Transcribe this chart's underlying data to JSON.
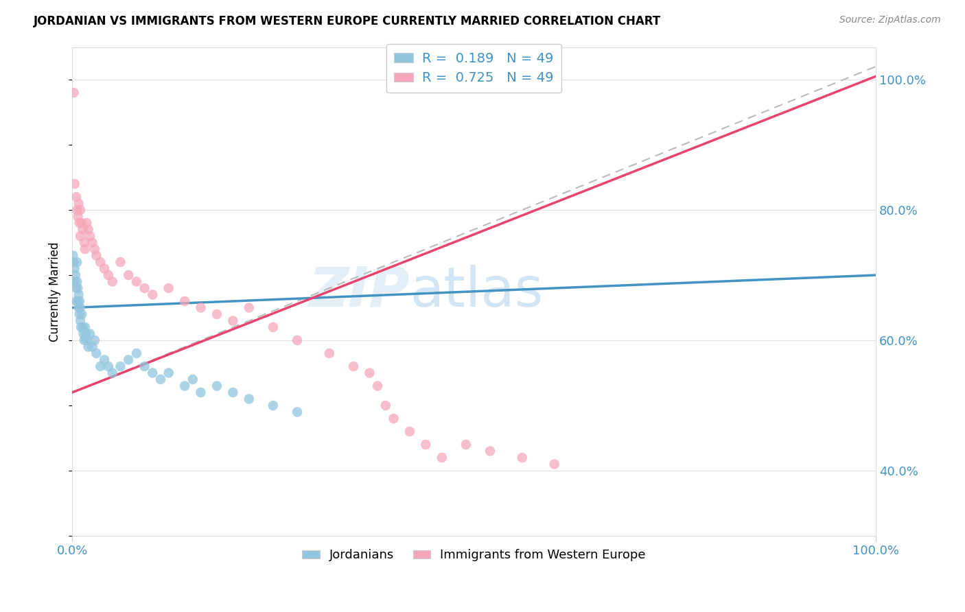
{
  "title": "JORDANIAN VS IMMIGRANTS FROM WESTERN EUROPE CURRENTLY MARRIED CORRELATION CHART",
  "source": "Source: ZipAtlas.com",
  "ylabel": "Currently Married",
  "legend1_R": "0.189",
  "legend1_N": "49",
  "legend2_R": "0.725",
  "legend2_N": "49",
  "legend_label1": "Jordanians",
  "legend_label2": "Immigrants from Western Europe",
  "blue_color": "#92c5de",
  "pink_color": "#f4a7b9",
  "blue_line_color": "#4393c3",
  "pink_line_color": "#e8436e",
  "dashed_line_color": "#bbbbbb",
  "blue_scatter_x": [
    0.001,
    0.002,
    0.003,
    0.003,
    0.004,
    0.005,
    0.005,
    0.006,
    0.006,
    0.007,
    0.007,
    0.008,
    0.008,
    0.009,
    0.009,
    0.01,
    0.01,
    0.011,
    0.012,
    0.013,
    0.014,
    0.015,
    0.016,
    0.017,
    0.018,
    0.02,
    0.022,
    0.025,
    0.028,
    0.03,
    0.035,
    0.04,
    0.045,
    0.05,
    0.06,
    0.07,
    0.08,
    0.09,
    0.1,
    0.11,
    0.12,
    0.14,
    0.15,
    0.16,
    0.18,
    0.2,
    0.22,
    0.25,
    0.28
  ],
  "blue_scatter_y": [
    0.73,
    0.72,
    0.71,
    0.69,
    0.7,
    0.68,
    0.66,
    0.72,
    0.69,
    0.68,
    0.66,
    0.65,
    0.67,
    0.66,
    0.64,
    0.63,
    0.65,
    0.62,
    0.64,
    0.62,
    0.61,
    0.6,
    0.62,
    0.61,
    0.6,
    0.59,
    0.61,
    0.59,
    0.6,
    0.58,
    0.56,
    0.57,
    0.56,
    0.55,
    0.56,
    0.57,
    0.58,
    0.56,
    0.55,
    0.54,
    0.55,
    0.53,
    0.54,
    0.52,
    0.53,
    0.52,
    0.51,
    0.5,
    0.49
  ],
  "blue_line_x": [
    0.0,
    1.0
  ],
  "blue_line_y": [
    0.665,
    0.705
  ],
  "pink_scatter_x": [
    0.002,
    0.003,
    0.005,
    0.006,
    0.007,
    0.008,
    0.009,
    0.01,
    0.01,
    0.012,
    0.013,
    0.015,
    0.016,
    0.018,
    0.02,
    0.022,
    0.025,
    0.028,
    0.03,
    0.035,
    0.04,
    0.045,
    0.05,
    0.06,
    0.07,
    0.08,
    0.09,
    0.1,
    0.12,
    0.14,
    0.16,
    0.18,
    0.2,
    0.22,
    0.25,
    0.28,
    0.32,
    0.35,
    0.37,
    0.38,
    0.39,
    0.4,
    0.42,
    0.44,
    0.46,
    0.49,
    0.52,
    0.56,
    0.6
  ],
  "pink_scatter_y": [
    0.98,
    0.84,
    0.82,
    0.8,
    0.79,
    0.81,
    0.78,
    0.8,
    0.76,
    0.78,
    0.77,
    0.75,
    0.74,
    0.78,
    0.77,
    0.76,
    0.75,
    0.74,
    0.73,
    0.72,
    0.71,
    0.7,
    0.69,
    0.72,
    0.7,
    0.69,
    0.68,
    0.67,
    0.68,
    0.66,
    0.65,
    0.64,
    0.63,
    0.65,
    0.62,
    0.6,
    0.58,
    0.56,
    0.55,
    0.53,
    0.5,
    0.48,
    0.46,
    0.44,
    0.42,
    0.44,
    0.43,
    0.42,
    0.41
  ],
  "pink_line_x": [
    0.0,
    1.0
  ],
  "pink_line_y": [
    0.52,
    1.0
  ],
  "dash_line_x": [
    0.0,
    1.0
  ],
  "dash_line_y": [
    0.52,
    1.0
  ],
  "xlim": [
    0.0,
    1.0
  ],
  "ylim": [
    0.3,
    1.05
  ],
  "yticks": [
    0.4,
    0.6,
    0.8,
    1.0
  ],
  "ytick_labels": [
    "40.0%",
    "60.0%",
    "80.0%",
    "100.0%"
  ],
  "xticks": [
    0.0,
    1.0
  ],
  "xtick_labels": [
    "0.0%",
    "100.0%"
  ]
}
